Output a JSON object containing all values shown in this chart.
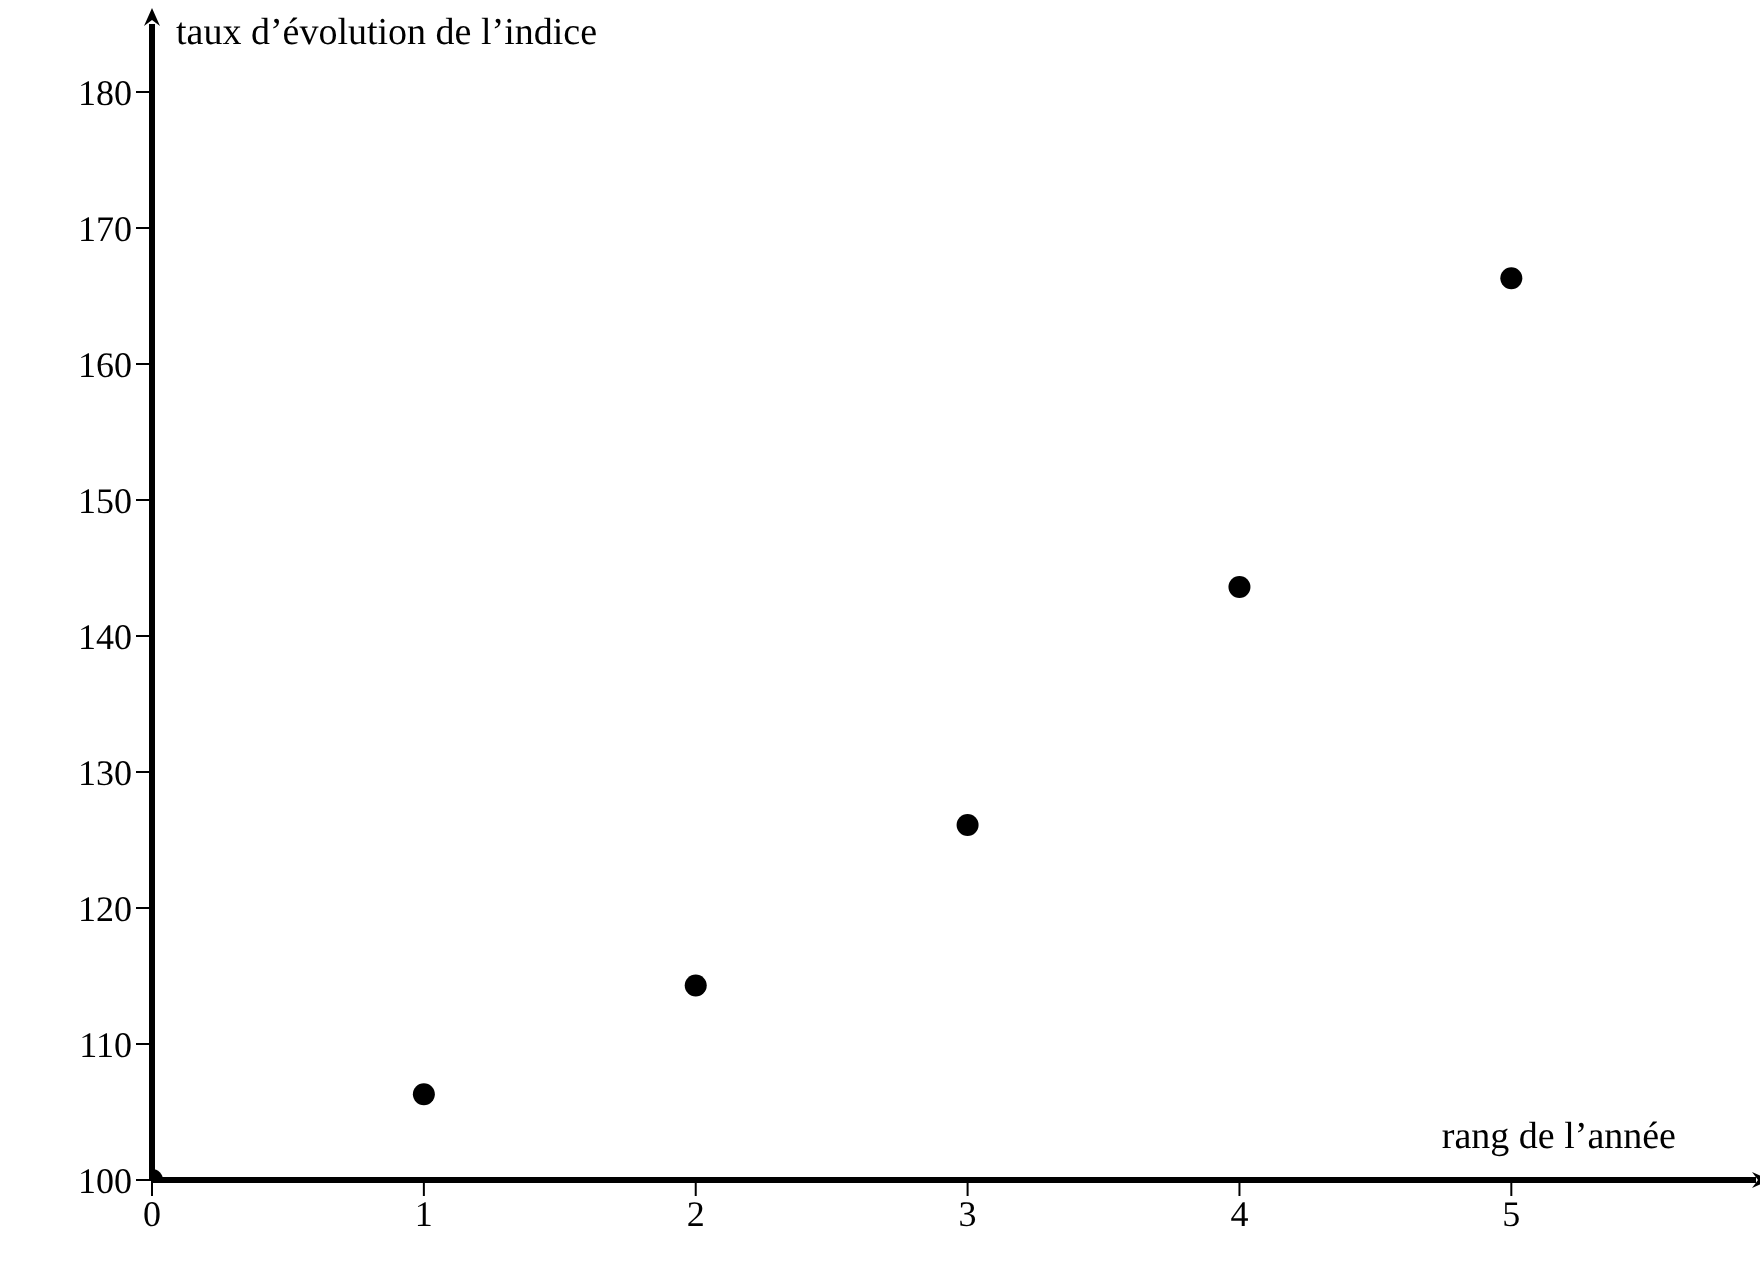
{
  "chart_data": {
    "type": "scatter",
    "xlabel": "rang de l’année",
    "ylabel": "taux d’évolution de l’indice",
    "x": [
      0,
      1,
      2,
      3,
      4,
      5
    ],
    "series": [
      {
        "color": "#000000",
        "values": [
          100,
          106.3,
          114.3,
          126.1,
          143.6,
          166.3
        ]
      }
    ],
    "xlim": [
      0,
      5.9
    ],
    "xticks": [
      0,
      1,
      2,
      3,
      4,
      5
    ],
    "ylim": [
      100,
      185
    ],
    "yticks": [
      100,
      110,
      120,
      130,
      140,
      150,
      160,
      170,
      180
    ],
    "marker": "circle",
    "grid": false,
    "legend": false
  }
}
